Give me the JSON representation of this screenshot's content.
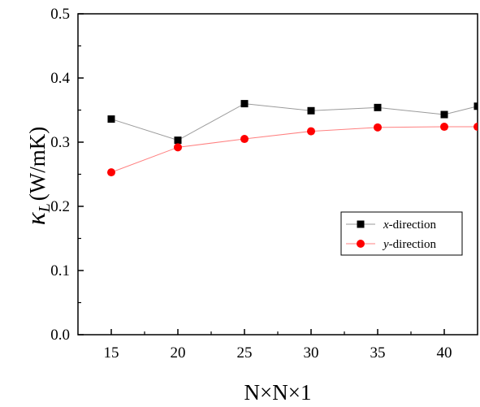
{
  "chart_data": {
    "type": "line",
    "xlabel": "N×N×1",
    "ylabel_symbol": "κ",
    "ylabel_subscript": "L",
    "ylabel_unit": "(W/mK)",
    "xlim": [
      12.5,
      42.5
    ],
    "ylim": [
      0.0,
      0.5
    ],
    "x_ticks": [
      15,
      20,
      25,
      30,
      35,
      40
    ],
    "y_ticks": [
      0.0,
      0.1,
      0.2,
      0.3,
      0.4,
      0.5
    ],
    "x_tick_labels": [
      "15",
      "20",
      "25",
      "30",
      "35",
      "40"
    ],
    "y_tick_labels": [
      "0.0",
      "0.1",
      "0.2",
      "0.3",
      "0.4",
      "0.5"
    ],
    "grid": false,
    "legend_position": "center-right",
    "series": [
      {
        "name_italic": "x",
        "name_rest": "-direction",
        "marker": "square",
        "marker_color": "#000000",
        "line_color": "#9a9a9a",
        "x": [
          15,
          20,
          25,
          30,
          35,
          40,
          42.5
        ],
        "y": [
          0.336,
          0.303,
          0.36,
          0.349,
          0.354,
          0.343,
          0.356
        ]
      },
      {
        "name_italic": "y",
        "name_rest": "-direction",
        "marker": "circle",
        "marker_color": "#ff0000",
        "line_color": "#ff8080",
        "x": [
          15,
          20,
          25,
          30,
          35,
          40,
          42.5
        ],
        "y": [
          0.253,
          0.292,
          0.305,
          0.317,
          0.323,
          0.324,
          0.324
        ]
      }
    ]
  }
}
